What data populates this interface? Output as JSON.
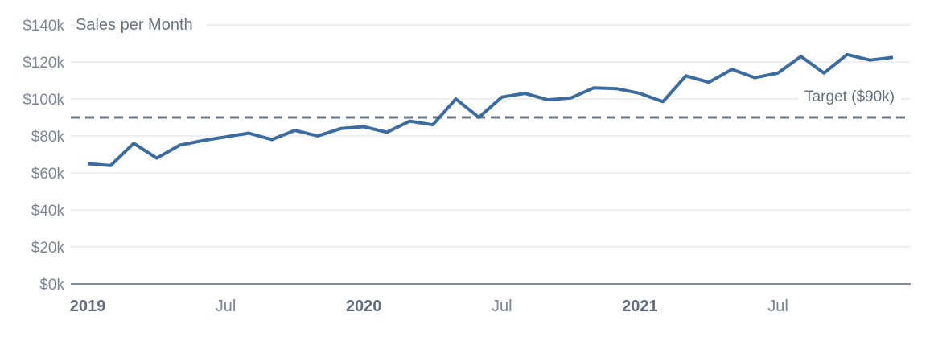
{
  "chart_data": {
    "type": "line",
    "title": "Sales per Month",
    "series_name": "Sales",
    "unit": "USD thousands (values in $k)",
    "months": [
      "2019-01",
      "2019-02",
      "2019-03",
      "2019-04",
      "2019-05",
      "2019-06",
      "2019-07",
      "2019-08",
      "2019-09",
      "2019-10",
      "2019-11",
      "2019-12",
      "2020-01",
      "2020-02",
      "2020-03",
      "2020-04",
      "2020-05",
      "2020-06",
      "2020-07",
      "2020-08",
      "2020-09",
      "2020-10",
      "2020-11",
      "2020-12",
      "2021-01",
      "2021-02",
      "2021-03",
      "2021-04",
      "2021-05",
      "2021-06",
      "2021-07",
      "2021-08",
      "2021-09",
      "2021-10",
      "2021-11",
      "2021-12"
    ],
    "values": [
      65,
      64,
      76,
      68,
      75,
      77.5,
      79.5,
      81.5,
      78,
      83,
      80,
      84,
      85,
      82,
      88,
      86,
      100,
      90,
      101,
      103,
      99.5,
      100.5,
      106,
      105.5,
      103,
      98.5,
      112.5,
      109,
      116,
      111.5,
      114,
      123,
      114,
      124,
      121,
      122.5
    ],
    "ylim": [
      0,
      140
    ],
    "y_ticks": [
      {
        "value": 0,
        "label": "$0k"
      },
      {
        "value": 20,
        "label": "$20k"
      },
      {
        "value": 40,
        "label": "$40k"
      },
      {
        "value": 60,
        "label": "$60k"
      },
      {
        "value": 80,
        "label": "$80k"
      },
      {
        "value": 100,
        "label": "$100k"
      },
      {
        "value": 120,
        "label": "$120k"
      },
      {
        "value": 140,
        "label": "$140k"
      }
    ],
    "x_ticks": [
      {
        "month_index": 0,
        "label": "2019",
        "bold": true
      },
      {
        "month_index": 6,
        "label": "Jul",
        "bold": false
      },
      {
        "month_index": 12,
        "label": "2020",
        "bold": true
      },
      {
        "month_index": 18,
        "label": "Jul",
        "bold": false
      },
      {
        "month_index": 24,
        "label": "2021",
        "bold": true
      },
      {
        "month_index": 30,
        "label": "Jul",
        "bold": false
      }
    ],
    "target": {
      "value": 90,
      "label": "Target ($90k)"
    },
    "grid": true,
    "legend": "none"
  },
  "colors": {
    "line": "#3a6ca0",
    "target_line": "#6c7888",
    "grid": "#dbdfe4",
    "axis": "#828b99",
    "tick_label": "#7c8595",
    "tick_label_bold": "#626d7d",
    "title": "#6a7482",
    "target_label": "#66707f",
    "background": "#ffffff"
  }
}
